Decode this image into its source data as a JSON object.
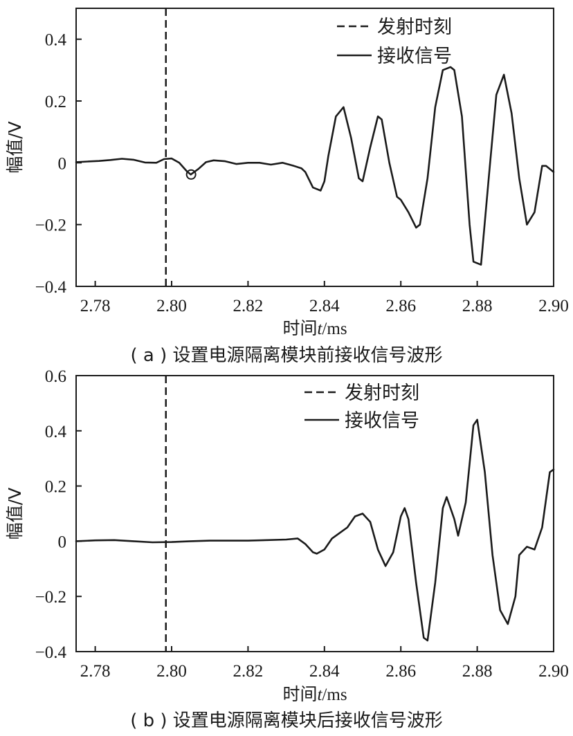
{
  "chart_data": [
    {
      "type": "line",
      "caption": "( a ) 设置电源隔离模块前接收信号波形",
      "xlabel_prefix": "时间",
      "xlabel_var": "t",
      "xlabel_unit": "/ms",
      "ylabel": "幅值/V",
      "xlim": [
        2.775,
        2.9
      ],
      "ylim": [
        -0.4,
        0.5
      ],
      "x_ticks": [
        "2.78",
        "2.80",
        "2.82",
        "2.84",
        "2.86",
        "2.88",
        "2.90"
      ],
      "x_tick_values": [
        2.78,
        2.8,
        2.82,
        2.84,
        2.86,
        2.88,
        2.9
      ],
      "y_ticks": [
        "−0.4",
        "−0.2",
        "0",
        "0.2",
        "0.4"
      ],
      "y_tick_values": [
        -0.4,
        -0.2,
        0,
        0.2,
        0.4
      ],
      "legend": {
        "position": "top-right",
        "dashed": "发射时刻",
        "solid": "接收信号"
      },
      "emission_x": 2.7985,
      "marker": {
        "x": 2.8051,
        "y": -0.038
      },
      "series": [
        {
          "name": "接收信号",
          "x": [
            2.775,
            2.778,
            2.781,
            2.784,
            2.787,
            2.79,
            2.793,
            2.796,
            2.798,
            2.8,
            2.802,
            2.804,
            2.805,
            2.807,
            2.809,
            2.811,
            2.814,
            2.817,
            2.82,
            2.823,
            2.826,
            2.829,
            2.832,
            2.834,
            2.835,
            2.837,
            2.839,
            2.84,
            2.841,
            2.843,
            2.845,
            2.847,
            2.849,
            2.85,
            2.852,
            2.854,
            2.855,
            2.857,
            2.859,
            2.86,
            2.862,
            2.864,
            2.865,
            2.867,
            2.869,
            2.871,
            2.873,
            2.874,
            2.876,
            2.878,
            2.879,
            2.881,
            2.883,
            2.885,
            2.887,
            2.889,
            2.891,
            2.893,
            2.895,
            2.897,
            2.898,
            2.9
          ],
          "y": [
            0.002,
            0.004,
            0.006,
            0.009,
            0.013,
            0.01,
            0.001,
            0.0,
            0.012,
            0.014,
            0.0,
            -0.028,
            -0.038,
            -0.02,
            0.002,
            0.008,
            0.005,
            -0.004,
            0.0,
            0.0,
            -0.006,
            0.0,
            -0.01,
            -0.018,
            -0.03,
            -0.08,
            -0.09,
            -0.06,
            0.02,
            0.15,
            0.18,
            0.08,
            -0.05,
            -0.06,
            0.05,
            0.15,
            0.14,
            0.0,
            -0.11,
            -0.12,
            -0.16,
            -0.21,
            -0.2,
            -0.05,
            0.18,
            0.3,
            0.31,
            0.3,
            0.15,
            -0.2,
            -0.32,
            -0.33,
            -0.05,
            0.22,
            0.285,
            0.16,
            -0.05,
            -0.2,
            -0.16,
            -0.01,
            -0.01,
            -0.03
          ]
        }
      ]
    },
    {
      "type": "line",
      "caption": "( b ) 设置电源隔离模块后接收信号波形",
      "xlabel_prefix": "时间",
      "xlabel_var": "t",
      "xlabel_unit": "/ms",
      "ylabel": "幅值/V",
      "xlim": [
        2.775,
        2.9
      ],
      "ylim": [
        -0.4,
        0.6
      ],
      "x_ticks": [
        "2.78",
        "2.80",
        "2.82",
        "2.84",
        "2.86",
        "2.88",
        "2.90"
      ],
      "x_tick_values": [
        2.78,
        2.8,
        2.82,
        2.84,
        2.86,
        2.88,
        2.9
      ],
      "y_ticks": [
        "−0.4",
        "−0.2",
        "0",
        "0.2",
        "0.4",
        "0.6"
      ],
      "y_tick_values": [
        -0.4,
        -0.2,
        0,
        0.2,
        0.4,
        0.6
      ],
      "legend": {
        "position": "top-right",
        "dashed": "发射时刻",
        "solid": "接收信号"
      },
      "emission_x": 2.7985,
      "series": [
        {
          "name": "接收信号",
          "x": [
            2.775,
            2.78,
            2.785,
            2.79,
            2.795,
            2.8,
            2.805,
            2.81,
            2.815,
            2.82,
            2.825,
            2.83,
            2.833,
            2.835,
            2.837,
            2.838,
            2.84,
            2.842,
            2.844,
            2.846,
            2.848,
            2.85,
            2.852,
            2.854,
            2.856,
            2.858,
            2.86,
            2.861,
            2.862,
            2.864,
            2.866,
            2.867,
            2.869,
            2.871,
            2.872,
            2.874,
            2.875,
            2.877,
            2.879,
            2.88,
            2.882,
            2.884,
            2.886,
            2.888,
            2.89,
            2.891,
            2.893,
            2.895,
            2.897,
            2.899,
            2.9
          ],
          "y": [
            0.0,
            0.003,
            0.004,
            0.0,
            -0.004,
            -0.003,
            0.0,
            0.002,
            0.002,
            0.002,
            0.004,
            0.006,
            0.01,
            -0.01,
            -0.04,
            -0.045,
            -0.03,
            0.01,
            0.03,
            0.05,
            0.09,
            0.1,
            0.07,
            -0.03,
            -0.09,
            -0.04,
            0.09,
            0.12,
            0.08,
            -0.15,
            -0.35,
            -0.36,
            -0.15,
            0.12,
            0.16,
            0.08,
            0.02,
            0.14,
            0.42,
            0.44,
            0.25,
            -0.05,
            -0.25,
            -0.3,
            -0.2,
            -0.05,
            -0.02,
            -0.03,
            0.05,
            0.25,
            0.26
          ]
        }
      ]
    }
  ]
}
